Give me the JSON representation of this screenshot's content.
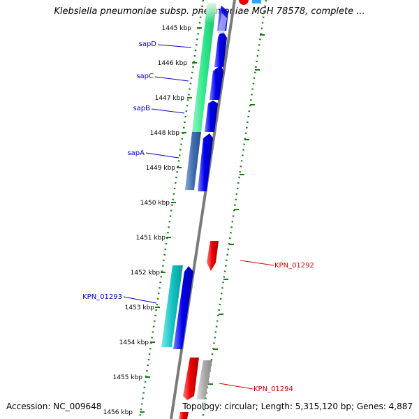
{
  "title": "Klebsiella pneumoniae subsp. pneumoniae MGH 78578, complete ...",
  "footer": {
    "accession": "Accession: NC_009648",
    "summary": "Topology: circular; Length: 5,315,120 bp; Genes: 4,887"
  },
  "scale_labels": [
    "1445 kbp",
    "1446 kbp",
    "1447 kbp",
    "1448 kbp",
    "1449 kbp",
    "1450 kbp",
    "1451 kbp",
    "1452 kbp",
    "1453 kbp",
    "1454 kbp",
    "1455 kbp",
    "1456 kbp"
  ],
  "gene_labels": {
    "left": [
      "sapD",
      "sapC",
      "sapB",
      "sapA",
      "KPN_01293"
    ],
    "right": [
      "KPN_01292",
      "KPN_01294"
    ]
  },
  "colors": {
    "left_label": "#0000cc",
    "right_label": "#cc0000",
    "forward_strand_feature": "#0000ee",
    "reverse_strand_feature": "#ee0000",
    "sap_operon_band": "#2ee88a",
    "sapA_band": "#3f6fb0",
    "KPN_01293_band": "#14c4c4",
    "KPN_01294_band": "#aaaaaa",
    "backbone": "#7a7a7a",
    "tick_marks": "#1a7a1a"
  }
}
